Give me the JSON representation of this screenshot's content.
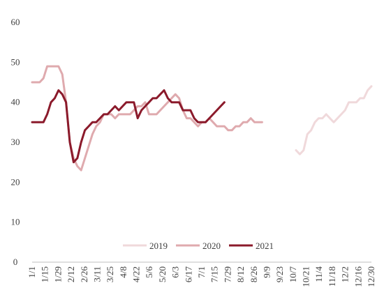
{
  "chart_data": {
    "type": "line",
    "title": "",
    "xlabel": "",
    "ylabel": "",
    "ylim": [
      0,
      60
    ],
    "yticks": [
      0,
      10,
      20,
      30,
      40,
      50,
      60
    ],
    "grid": false,
    "legend_position": "bottom-center",
    "x_tick_labels": [
      "1/1",
      "1/15",
      "1/29",
      "2/12",
      "2/26",
      "3/11",
      "3/25",
      "4/8",
      "4/22",
      "5/6",
      "5/20",
      "6/3",
      "6/17",
      "7/1",
      "7/15",
      "7/29",
      "8/12",
      "8/26",
      "9/9",
      "9/23",
      "10/7",
      "10/21",
      "11/4",
      "11/18",
      "12/2",
      "12/16",
      "12/30"
    ],
    "series": [
      {
        "name": "2019",
        "color": "#f0d9db",
        "values": [
          null,
          null,
          null,
          null,
          null,
          null,
          null,
          null,
          null,
          null,
          null,
          null,
          null,
          null,
          null,
          null,
          null,
          null,
          null,
          null,
          null,
          null,
          null,
          null,
          null,
          null,
          null,
          null,
          null,
          null,
          null,
          null,
          null,
          null,
          null,
          null,
          null,
          null,
          null,
          null,
          null,
          null,
          null,
          null,
          null,
          null,
          null,
          null,
          null,
          null,
          null,
          null,
          null,
          null,
          null,
          null,
          null,
          null,
          null,
          null,
          null,
          null,
          null,
          null,
          null,
          null,
          null,
          null,
          null,
          null,
          28,
          27,
          28,
          32,
          33,
          35,
          36,
          36,
          37,
          36,
          35,
          36,
          37,
          38,
          40,
          40,
          40,
          41,
          41,
          43,
          44
        ]
      },
      {
        "name": "2020",
        "color": "#dfaaae",
        "values": [
          45,
          45,
          45,
          46,
          49,
          49,
          49,
          49,
          47,
          40,
          30,
          26,
          24,
          23,
          26,
          29,
          32,
          34,
          35,
          37,
          37,
          37,
          36,
          37,
          37,
          37,
          37,
          38,
          39,
          39,
          40,
          37,
          37,
          37,
          38,
          39,
          40,
          41,
          42,
          41,
          38,
          36,
          36,
          35,
          34,
          35,
          35,
          36,
          35,
          34,
          34,
          34,
          33,
          33,
          34,
          34,
          35,
          35,
          36,
          35,
          35,
          35
        ]
      },
      {
        "name": "2021",
        "color": "#8b1a2b",
        "values": [
          35,
          35,
          35,
          35,
          37,
          40,
          41,
          43,
          42,
          40,
          30,
          25,
          26,
          30,
          33,
          34,
          35,
          35,
          36,
          37,
          37,
          38,
          39,
          38,
          39,
          40,
          40,
          40,
          36,
          38,
          39,
          40,
          41,
          41,
          42,
          43,
          41,
          40,
          40,
          40,
          38,
          38,
          38,
          36,
          35,
          35,
          35,
          36,
          37,
          38,
          39,
          40
        ]
      }
    ]
  }
}
